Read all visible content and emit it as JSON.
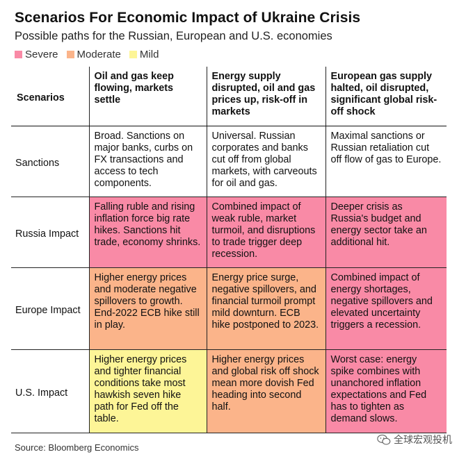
{
  "title": "Scenarios For Economic Impact of Ukraine Crisis",
  "subtitle": "Possible paths for the Russian, European and U.S. economies",
  "legend": [
    {
      "label": "Severe",
      "color": "#f98aa6"
    },
    {
      "label": "Moderate",
      "color": "#fbb48a"
    },
    {
      "label": "Mild",
      "color": "#fdf597"
    }
  ],
  "table": {
    "corner": "Scenarios",
    "columns": [
      "Oil and gas keep flowing, markets settle",
      "Energy supply disrupted, oil and gas prices up, risk-off in markets",
      "European gas supply halted, oil disrupted, significant global risk-off shock"
    ],
    "rows": [
      {
        "label": "Sanctions",
        "cells": [
          {
            "text": "Broad. Sanctions on major banks, curbs on FX transactions and access to tech components.",
            "severity": "none"
          },
          {
            "text": "Universal. Russian corporates and banks cut off from global markets, with carveouts for oil and gas.",
            "severity": "none"
          },
          {
            "text": "Maximal sanctions or Russian retaliation cut off flow of gas to Europe.",
            "severity": "none"
          }
        ]
      },
      {
        "label": "Russia Impact",
        "cells": [
          {
            "text": "Falling ruble and rising inflation force big rate hikes. Sanctions hit trade, economy shrinks.",
            "severity": "severe"
          },
          {
            "text": "Combined impact of weak ruble, market turmoil, and disruptions to trade trigger deep recession.",
            "severity": "severe"
          },
          {
            "text": "Deeper crisis as Russia's budget and energy sector take an additional hit.",
            "severity": "severe"
          }
        ]
      },
      {
        "label": "Europe Impact",
        "cells": [
          {
            "text": "Higher energy prices and moderate negative spillovers to growth. End-2022 ECB hike still in play.",
            "severity": "moderate"
          },
          {
            "text": "Energy price surge, negative spillovers, and financial turmoil prompt mild downturn. ECB hike postponed to 2023.",
            "severity": "moderate"
          },
          {
            "text": "Combined impact of energy shortages, negative spillovers and elevated uncertainty triggers a recession.",
            "severity": "severe"
          }
        ]
      },
      {
        "label": "U.S. Impact",
        "cells": [
          {
            "text": "Higher energy prices and tighter financial conditions take most hawkish seven hike path for Fed off the table.",
            "severity": "mild"
          },
          {
            "text": "Higher energy prices and global risk off shock mean more dovish Fed heading into second half.",
            "severity": "moderate"
          },
          {
            "text": "Worst case: energy spike combines with unanchored inflation expectations and Fed has to tighten as demand slows.",
            "severity": "severe"
          }
        ]
      }
    ]
  },
  "colors": {
    "severe": "#f98aa6",
    "moderate": "#fbb48a",
    "mild": "#fdf597",
    "none": "#ffffff"
  },
  "source": "Source: Bloomberg Economics",
  "watermark": {
    "text": "全球宏观投机",
    "icon": "wechat-logo-icon"
  }
}
